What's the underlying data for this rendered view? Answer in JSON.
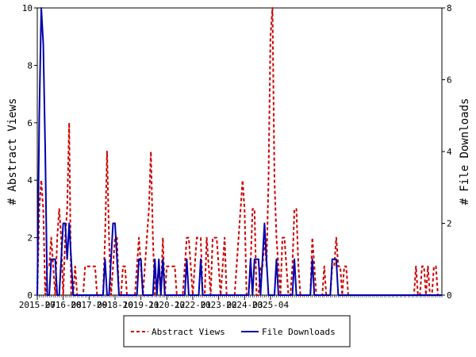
{
  "chart_data": {
    "type": "line",
    "title": "",
    "xlabel": "",
    "ylabel_left": "# Abstract Views",
    "ylabel_right": "# File Downloads",
    "ylim_left": [
      0,
      10
    ],
    "ylim_right": [
      0,
      8
    ],
    "x_tick_labels": [
      "2015-07",
      "2016-08",
      "2017-09",
      "2018-10",
      "2019-11",
      "2020-12",
      "2022-01",
      "2023-02",
      "2024-03",
      "2025-04"
    ],
    "y_left_ticks": [
      "0",
      "2",
      "4",
      "6",
      "8",
      "10"
    ],
    "y_right_ticks": [
      "0",
      "2",
      "4",
      "6",
      "8"
    ],
    "legend_position": "bottom-center",
    "series": [
      {
        "name": "Abstract Views",
        "axis": "left",
        "color": "#cc0000",
        "dash": "dashed",
        "values": [
          0,
          3,
          4,
          3,
          0,
          1,
          1,
          2,
          1,
          0,
          2,
          3,
          2,
          0,
          2,
          3,
          6,
          0,
          0,
          1,
          0,
          0,
          0,
          0,
          1,
          1,
          1,
          1,
          1,
          1,
          0,
          0,
          0,
          0,
          2,
          5,
          2,
          0,
          1,
          2,
          2,
          0,
          0,
          1,
          1,
          0,
          0,
          0,
          0,
          0,
          1,
          2,
          1,
          0,
          1,
          2,
          3,
          5,
          2,
          0,
          0,
          1,
          0,
          2,
          0,
          1,
          1,
          1,
          1,
          1,
          0,
          0,
          0,
          0,
          1,
          2,
          2,
          1,
          0,
          1,
          2,
          2,
          2,
          0,
          0,
          2,
          1,
          0,
          2,
          2,
          2,
          1,
          0,
          1,
          2,
          0,
          0,
          0,
          0,
          0,
          1,
          2,
          3,
          4,
          3,
          0,
          0,
          1,
          3,
          3,
          0,
          0,
          1,
          1,
          2,
          1,
          4,
          9,
          10,
          4,
          2,
          1,
          0,
          2,
          2,
          1,
          0,
          0,
          1,
          3,
          3,
          1,
          0,
          0,
          0,
          0,
          0,
          0,
          2,
          1,
          0,
          0,
          0,
          0,
          1,
          0,
          0,
          0,
          1,
          1,
          2,
          1,
          1,
          0,
          1,
          1,
          0,
          0,
          0,
          0,
          0,
          0,
          0,
          0,
          0,
          0,
          0,
          0,
          0,
          0,
          0,
          0,
          0,
          0,
          0,
          0,
          0,
          0,
          0,
          0,
          0,
          0,
          0,
          0,
          0,
          0,
          0,
          0,
          0,
          0,
          1,
          0,
          0,
          1,
          1,
          0,
          1,
          0,
          0,
          1,
          1,
          0,
          0,
          0
        ]
      },
      {
        "name": "File Downloads",
        "axis": "right",
        "color": "#0000aa",
        "dash": "solid",
        "values": [
          0,
          5,
          8,
          7,
          4,
          0,
          0,
          1,
          1,
          1,
          0,
          0,
          1,
          2,
          2,
          1,
          2,
          1,
          0,
          0,
          0,
          0,
          0,
          0,
          0,
          0,
          0,
          0,
          0,
          0,
          0,
          0,
          0,
          0,
          1,
          0,
          0,
          1,
          2,
          2,
          1,
          0,
          0,
          0,
          0,
          0,
          0,
          0,
          0,
          0,
          0,
          1,
          1,
          0,
          0,
          0,
          0,
          0,
          0,
          1,
          0,
          1,
          0,
          1,
          0,
          0,
          0,
          0,
          0,
          0,
          0,
          0,
          0,
          0,
          0,
          1,
          0,
          0,
          0,
          0,
          0,
          0,
          1,
          0,
          0,
          0,
          0,
          0,
          0,
          0,
          0,
          0,
          0,
          0,
          0,
          0,
          0,
          0,
          0,
          0,
          0,
          0,
          0,
          0,
          0,
          0,
          0,
          1,
          0,
          1,
          1,
          1,
          0,
          1,
          2,
          1,
          0,
          0,
          0,
          0,
          1,
          0,
          0,
          0,
          0,
          0,
          0,
          0,
          0,
          1,
          0,
          0,
          0,
          0,
          0,
          0,
          0,
          0,
          1,
          0,
          0,
          0,
          0,
          0,
          0,
          0,
          0,
          0,
          1,
          1,
          1,
          0,
          0,
          0,
          0,
          0,
          0,
          0,
          0,
          0,
          0,
          0,
          0,
          0,
          0,
          0,
          0,
          0,
          0,
          0,
          0,
          0,
          0,
          0,
          0,
          0,
          0,
          0,
          0,
          0,
          0,
          0,
          0,
          0,
          0,
          0,
          0,
          0,
          0,
          0,
          0,
          0,
          0,
          0,
          0,
          0,
          0,
          0,
          0,
          0,
          0,
          0,
          0,
          0
        ]
      }
    ]
  }
}
